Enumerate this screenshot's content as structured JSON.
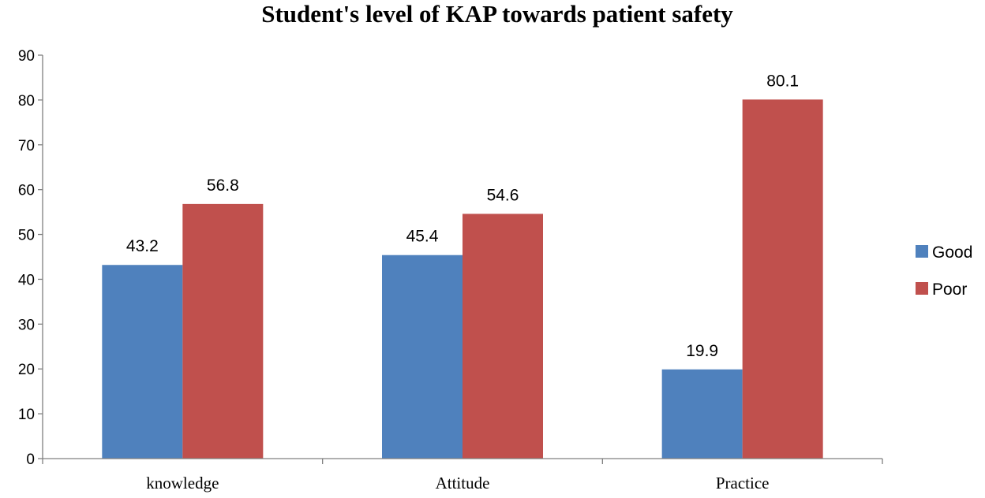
{
  "chart_data": {
    "type": "bar",
    "title": "Student's level of KAP towards patient safety",
    "categories": [
      "knowledge",
      "Attitude",
      "Practice"
    ],
    "series": [
      {
        "name": "Good",
        "values": [
          43.2,
          45.4,
          19.9
        ],
        "labels": [
          "43.2",
          "45.4",
          "19.9"
        ],
        "color": "#4F81BD"
      },
      {
        "name": "Poor",
        "values": [
          56.8,
          54.6,
          80.1
        ],
        "labels": [
          "56.8",
          "54.6",
          "80.1"
        ],
        "color": "#C0504D"
      }
    ],
    "yticks": [
      "0",
      "10",
      "20",
      "30",
      "40",
      "50",
      "60",
      "70",
      "80",
      "90"
    ],
    "ylim": [
      0,
      90
    ],
    "xlabel": "",
    "ylabel": "",
    "grid": false,
    "legend_position": "right"
  }
}
